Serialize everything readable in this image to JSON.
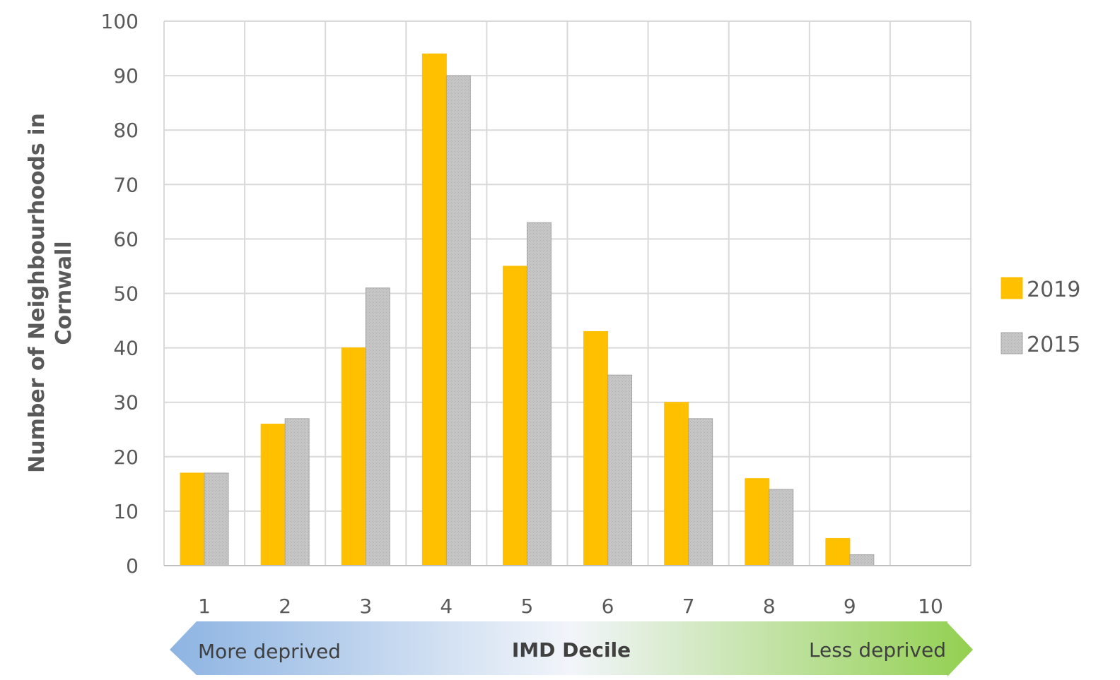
{
  "chart_data": {
    "type": "bar",
    "categories": [
      "1",
      "2",
      "3",
      "4",
      "5",
      "6",
      "7",
      "8",
      "9",
      "10"
    ],
    "series": [
      {
        "name": "2019",
        "color": "#FFC000",
        "values": [
          17,
          26,
          40,
          94,
          55,
          43,
          30,
          16,
          5,
          0
        ]
      },
      {
        "name": "2015",
        "color": "#BFBFBF",
        "values": [
          17,
          27,
          51,
          90,
          63,
          35,
          27,
          14,
          2,
          0
        ]
      }
    ],
    "ylabel_lines": [
      "Number of Neighbourhoods in",
      "Cornwall"
    ],
    "ylim": [
      0,
      100
    ],
    "yticks": [
      0,
      10,
      20,
      30,
      40,
      50,
      60,
      70,
      80,
      90,
      100
    ],
    "grid": true,
    "legend_position": "right",
    "axis_arrow": {
      "left_label": "More deprived",
      "center_label": "IMD Decile",
      "right_label": "Less deprived",
      "left_color": "#8DB4E2",
      "right_color": "#92D050"
    }
  }
}
